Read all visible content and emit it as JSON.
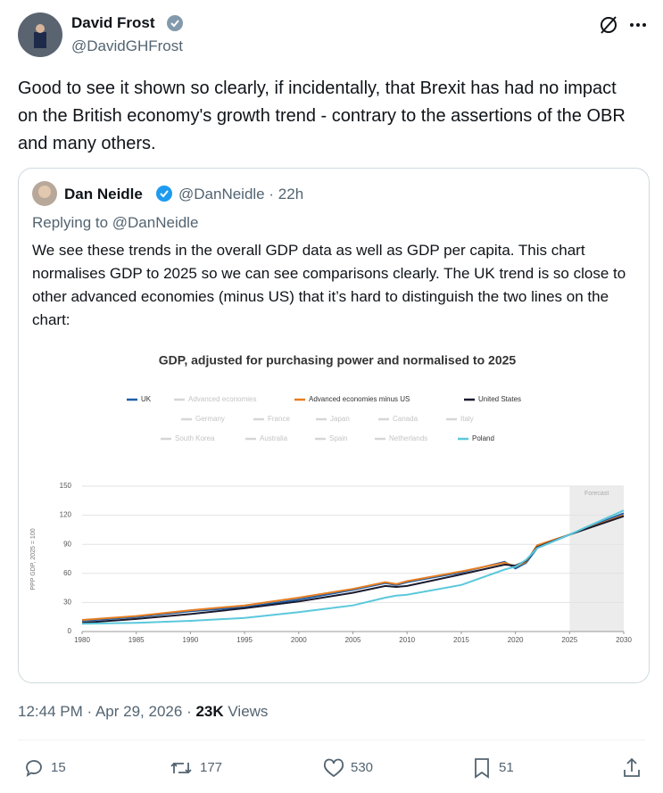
{
  "tweet": {
    "author": "David Frost",
    "handle": "@DavidGHFrost",
    "text": "Good to see it shown so clearly, if incidentally, that Brexit has had no impact on the British economy's growth trend - contrary to the assertions of the OBR and many others.",
    "time": "12:44 PM",
    "separator": "·",
    "date": "Apr 29, 2026",
    "views_count": "23K",
    "views_label": "Views",
    "replies": 15,
    "retweets": 177,
    "likes": 530,
    "bookmarks": 51
  },
  "quoted": {
    "author": "Dan Neidle",
    "handle": "@DanNeidle",
    "age": "22h",
    "replying_to": "Replying to @DanNeidle",
    "text": "We see these trends in the overall GDP data as well as GDP per capita.  This chart normalises GDP to 2025 so we can see comparisons clearly. The UK trend is so close to other advanced economies (minus US) that it’s hard to distinguish the two lines on the chart:"
  },
  "chart_data": {
    "type": "line",
    "title": "GDP, adjusted for purchasing power and normalised to 2025",
    "y_label": "PPP GDP, 2025 = 100",
    "annotation": "Forecast",
    "forecast_range": [
      2025,
      2030
    ],
    "x": [
      1980,
      1985,
      1990,
      1995,
      2000,
      2005,
      2008,
      2009,
      2010,
      2015,
      2019,
      2020,
      2021,
      2022,
      2025,
      2030
    ],
    "series": [
      {
        "name": "UK",
        "color": "#1f5fa8",
        "values": [
          11,
          15,
          21,
          25,
          33,
          43,
          50,
          48,
          51,
          61,
          72,
          65,
          71,
          86,
          100,
          122
        ]
      },
      {
        "name": "Advanced economies",
        "color": "#d6d6d6",
        "visible": false
      },
      {
        "name": "Advanced economies minus US",
        "color": "#e67e22",
        "values": [
          12,
          16,
          22,
          27,
          35,
          44,
          51,
          49,
          52,
          62,
          71,
          67,
          72,
          89,
          100,
          120
        ]
      },
      {
        "name": "United States",
        "color": "#1a1a2e",
        "values": [
          9,
          13,
          18,
          24,
          31,
          40,
          47,
          46,
          47,
          59,
          69,
          68,
          73,
          87,
          100,
          119
        ]
      },
      {
        "name": "Germany",
        "color": "#d6d6d6",
        "visible": false
      },
      {
        "name": "France",
        "color": "#d6d6d6",
        "visible": false
      },
      {
        "name": "Japan",
        "color": "#d6d6d6",
        "visible": false
      },
      {
        "name": "Canada",
        "color": "#d6d6d6",
        "visible": false
      },
      {
        "name": "Italy",
        "color": "#d6d6d6",
        "visible": false
      },
      {
        "name": "South Korea",
        "color": "#d6d6d6",
        "visible": false
      },
      {
        "name": "Australia",
        "color": "#d6d6d6",
        "visible": false
      },
      {
        "name": "Spain",
        "color": "#d6d6d6",
        "visible": false
      },
      {
        "name": "Netherlands",
        "color": "#d6d6d6",
        "visible": false
      },
      {
        "name": "Poland",
        "color": "#5bc8dc",
        "values": [
          8,
          9,
          11,
          14,
          20,
          27,
          35,
          37,
          38,
          48,
          64,
          67,
          74,
          86,
          100,
          125
        ]
      }
    ],
    "xlim": [
      1980,
      2030
    ],
    "xticks": [
      1980,
      1985,
      1990,
      1995,
      2000,
      2005,
      2010,
      2015,
      2020,
      2025,
      2030
    ],
    "ylim": [
      0,
      150
    ],
    "yticks": [
      0,
      30,
      60,
      90,
      120,
      150
    ],
    "grid": true
  }
}
